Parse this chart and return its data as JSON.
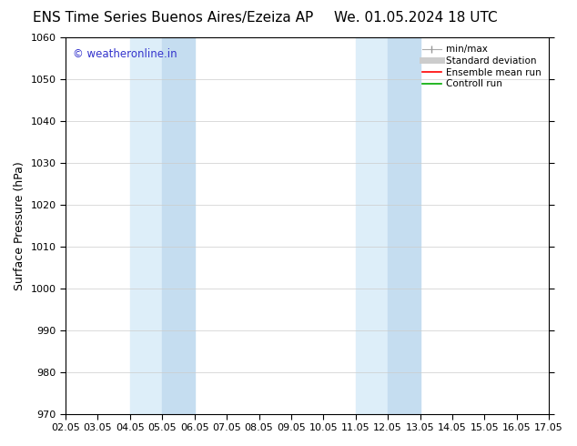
{
  "title_left": "ENS Time Series Buenos Aires/Ezeiza AP",
  "title_right": "We. 01.05.2024 18 UTC",
  "ylabel": "Surface Pressure (hPa)",
  "ylim": [
    970,
    1060
  ],
  "yticks": [
    970,
    980,
    990,
    1000,
    1010,
    1020,
    1030,
    1040,
    1050,
    1060
  ],
  "xlim": [
    0,
    15
  ],
  "xtick_positions": [
    0,
    1,
    2,
    3,
    4,
    5,
    6,
    7,
    8,
    9,
    10,
    11,
    12,
    13,
    14,
    15
  ],
  "xtick_labels": [
    "02.05",
    "03.05",
    "04.05",
    "05.05",
    "06.05",
    "07.05",
    "08.05",
    "09.05",
    "10.05",
    "11.05",
    "12.05",
    "13.05",
    "14.05",
    "15.05",
    "16.05",
    "17.05"
  ],
  "bg_color": "#ffffff",
  "plot_bg_color": "#ffffff",
  "light_band_color": "#ddeef9",
  "dark_band_color": "#c5ddf0",
  "band_regions": [
    {
      "light": [
        2.0,
        3.0
      ],
      "dark": [
        3.0,
        4.0
      ]
    },
    {
      "light": [
        9.0,
        10.0
      ],
      "dark": [
        10.0,
        11.0
      ]
    }
  ],
  "watermark_text": "© weatheronline.in",
  "watermark_color": "#3333cc",
  "grid_color": "#cccccc",
  "title_fontsize": 11,
  "tick_fontsize": 8,
  "ylabel_fontsize": 9
}
